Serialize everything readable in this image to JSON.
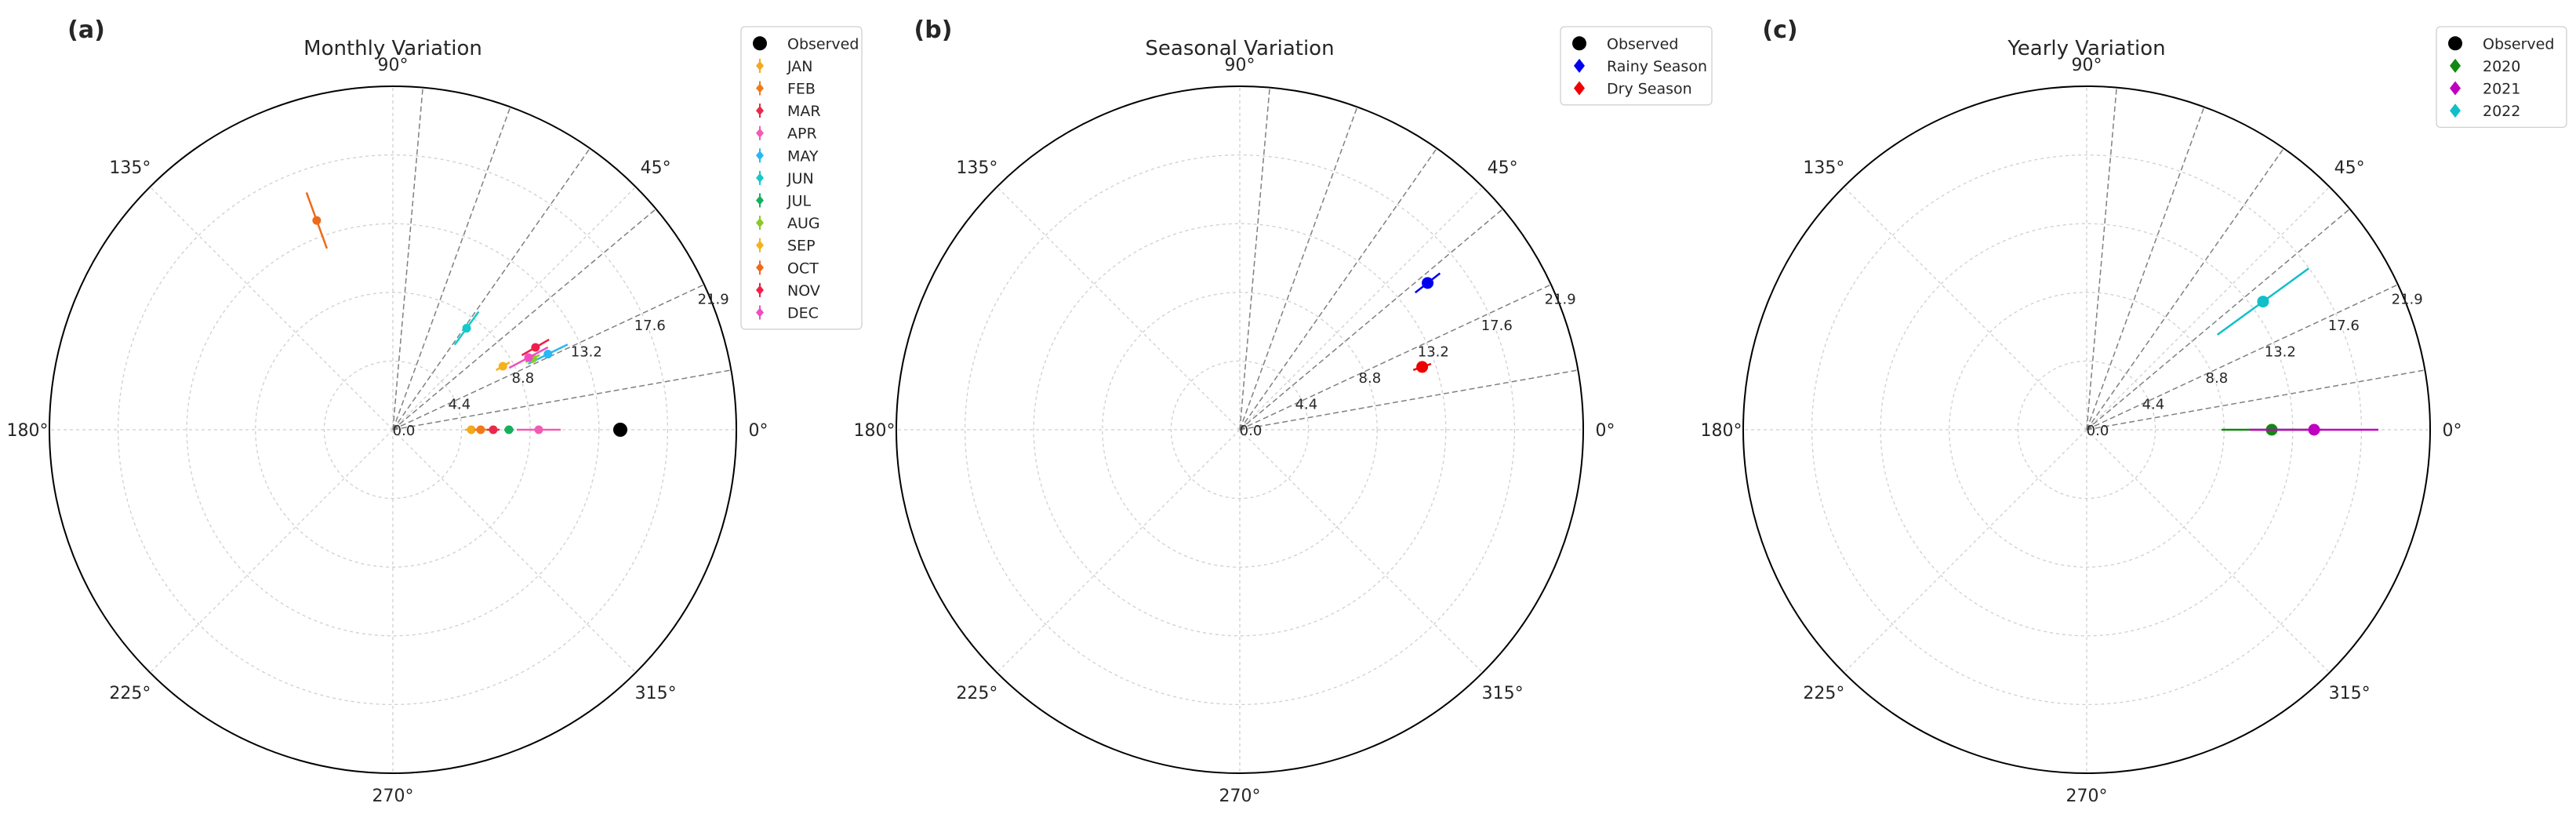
{
  "chart_data": [
    {
      "panel_label": "(a)",
      "type": "polar-scatter",
      "title": "Monthly Variation",
      "angle_ticks": [
        "0°",
        "45°",
        "90°",
        "135°",
        "180°",
        "225°",
        "270°",
        "315°"
      ],
      "r_ticks": [
        "0.0",
        "4.4",
        "8.8",
        "13.2",
        "17.6",
        "21.9"
      ],
      "r_max": 21.9,
      "ref_line_angles": [
        0,
        15,
        30,
        45,
        60,
        75
      ],
      "legend_position": "top-right",
      "observed": {
        "name": "Observed",
        "angle": 0,
        "r": 14.5,
        "color": "#000000"
      },
      "series": [
        {
          "name": "JAN",
          "color": "#f4a81c",
          "angle": 0,
          "r": 5.0,
          "err": 0.4
        },
        {
          "name": "FEB",
          "color": "#f07a1a",
          "angle": 0,
          "r": 5.6,
          "err": 0.4
        },
        {
          "name": "MAR",
          "color": "#e8294a",
          "angle": 0,
          "r": 6.4,
          "err": 0.4
        },
        {
          "name": "APR",
          "color": "#f25bb4",
          "angle": 0,
          "r": 9.3,
          "err": 1.4
        },
        {
          "name": "MAY",
          "color": "#29b8f0",
          "angle": 26,
          "r": 11.0,
          "err": 1.4
        },
        {
          "name": "JUN",
          "color": "#14c9c9",
          "angle": 54,
          "r": 8.0,
          "err": 1.3
        },
        {
          "name": "JUL",
          "color": "#16b05c",
          "angle": 0,
          "r": 7.4,
          "err": 0.3
        },
        {
          "name": "AUG",
          "color": "#8ac926",
          "angle": 27,
          "r": 10.0,
          "err": 0.5
        },
        {
          "name": "SEP",
          "color": "#f4b21c",
          "angle": 30,
          "r": 8.1,
          "err": 0.5
        },
        {
          "name": "OCT",
          "color": "#ee6a1a",
          "angle": 110,
          "r": 14.2,
          "err": 1.9
        },
        {
          "name": "NOV",
          "color": "#ef1f4a",
          "angle": 30,
          "r": 10.5,
          "err": 1.0
        },
        {
          "name": "DEC",
          "color": "#ee4fc0",
          "angle": 28,
          "r": 9.8,
          "err": 1.4
        }
      ]
    },
    {
      "panel_label": "(b)",
      "type": "polar-scatter",
      "title": "Seasonal Variation",
      "angle_ticks": [
        "0°",
        "45°",
        "90°",
        "135°",
        "180°",
        "225°",
        "270°",
        "315°"
      ],
      "r_ticks": [
        "0.0",
        "4.4",
        "8.8",
        "13.2",
        "17.6",
        "21.9"
      ],
      "r_max": 21.9,
      "ref_line_angles": [
        0,
        15,
        30,
        45,
        60,
        75
      ],
      "legend_position": "top-right",
      "observed": {
        "name": "Observed",
        "color": "#000000"
      },
      "series": [
        {
          "name": "Rainy Season",
          "color": "#0000ee",
          "angle": 38,
          "r": 15.2,
          "err": 1.0
        },
        {
          "name": "Dry Season",
          "color": "#ee0000",
          "angle": 19,
          "r": 12.3,
          "err": 0.6
        }
      ]
    },
    {
      "panel_label": "(c)",
      "type": "polar-scatter",
      "title": "Yearly Variation",
      "angle_ticks": [
        "0°",
        "45°",
        "90°",
        "135°",
        "180°",
        "225°",
        "270°",
        "315°"
      ],
      "r_ticks": [
        "0.0",
        "4.4",
        "8.8",
        "13.2",
        "17.6",
        "21.9"
      ],
      "r_max": 21.9,
      "ref_line_angles": [
        0,
        15,
        30,
        45,
        60,
        75
      ],
      "legend_position": "top-right",
      "observed": {
        "name": "Observed",
        "color": "#000000"
      },
      "series": [
        {
          "name": "2020",
          "color": "#118811",
          "angle": 0,
          "r": 11.8,
          "err": 3.2
        },
        {
          "name": "2021",
          "color": "#c000c0",
          "angle": 0,
          "r": 14.5,
          "err": 4.1
        },
        {
          "name": "2022",
          "color": "#11bfc9",
          "angle": 36,
          "r": 13.9,
          "err": 3.6
        }
      ]
    }
  ]
}
